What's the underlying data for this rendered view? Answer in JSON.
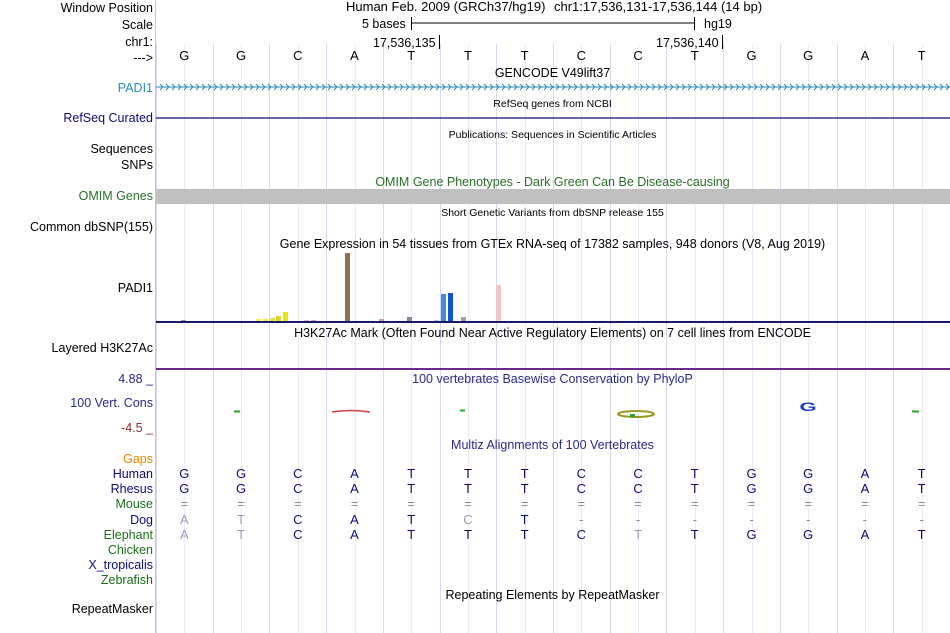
{
  "header": {
    "window_position_label": "Window Position",
    "scale_label": "Scale",
    "chrom_label": "chr1:",
    "strand_label": "--->",
    "assembly": "Human Feb. 2009 (GRCh37/hg19)",
    "position": "chr1:17,536,131-17,536,144 (14 bp)",
    "scale_text": "5 bases",
    "db": "hg19",
    "coord_a": "17,536,135",
    "coord_b": "17,536,140"
  },
  "bases": [
    "G",
    "G",
    "C",
    "A",
    "T",
    "T",
    "T",
    "C",
    "C",
    "T",
    "G",
    "G",
    "A",
    "T"
  ],
  "tracks": {
    "gencode": {
      "title": "GENCODE V49lift37",
      "label": "PADI1",
      "color": "#2a8cb4"
    },
    "refseq": {
      "title": "RefSeq genes from NCBI",
      "label": "RefSeq Curated",
      "color": "#0c0c78"
    },
    "pubs": {
      "title": "Publications: Sequences in Scientific Articles",
      "label_1": "Sequences",
      "label_2": "SNPs"
    },
    "omim": {
      "title": "OMIM Gene Phenotypes - Dark Green Can Be Disease-causing",
      "label": "OMIM Genes",
      "color": "#2a6e2a"
    },
    "dbsnp": {
      "title": "Short Genetic Variants from dbSNP release 155",
      "label": "Common dbSNP(155)"
    },
    "gtex": {
      "title": "Gene Expression in 54 tissues from GTEx RNA-seq of 17382 samples, 948 donors (V8, Aug 2019)",
      "label": "PADI1",
      "bars": [
        {
          "value": 0.3,
          "color": "#e8a0a0"
        },
        {
          "value": 0.3,
          "color": "#d8a0a0"
        },
        {
          "value": 0.2,
          "color": "#c0c0e0"
        },
        {
          "value": 0.6,
          "color": "#9090c8"
        },
        {
          "value": 0.3,
          "color": "#a0a0d0"
        },
        {
          "value": 0.5,
          "color": "#b8b8e8"
        },
        {
          "value": 0.2,
          "color": "#d0d0f0"
        },
        {
          "value": 0.3,
          "color": "#f0c0a0"
        },
        {
          "value": 0.2,
          "color": "#e8d0b0"
        },
        {
          "value": 0.2,
          "color": "#c8c8c8"
        },
        {
          "value": 0.2,
          "color": "#d0d0d0"
        },
        {
          "value": 0.2,
          "color": "#d8d8d8"
        },
        {
          "value": 0.3,
          "color": "#e8e8c0"
        },
        {
          "value": 0.2,
          "color": "#d8d8b8"
        },
        {
          "value": 1.0,
          "color": "#f0f060"
        },
        {
          "value": 1.2,
          "color": "#e8e850"
        },
        {
          "value": 1.6,
          "color": "#e0e040"
        },
        {
          "value": 2.2,
          "color": "#d8d830"
        },
        {
          "value": 3.6,
          "color": "#e8e810"
        },
        {
          "value": 0.3,
          "color": "#a0c0a0"
        },
        {
          "value": 0.5,
          "color": "#d0a0d0"
        },
        {
          "value": 0.9,
          "color": "#e0b0e0"
        },
        {
          "value": 0.6,
          "color": "#c0a0c0"
        },
        {
          "value": 0.4,
          "color": "#b0b0d0"
        },
        {
          "value": 0.3,
          "color": "#c0c0c0"
        },
        {
          "value": 0.3,
          "color": "#f0b0b0"
        },
        {
          "value": 0.2,
          "color": "#d0c0c0"
        },
        {
          "value": 26.0,
          "color": "#8b7355"
        },
        {
          "value": 0.2,
          "color": "#c0c0c0"
        },
        {
          "value": 0.3,
          "color": "#d0d0d0"
        },
        {
          "value": 0.3,
          "color": "#c0b0a0"
        },
        {
          "value": 0.2,
          "color": "#d0d0d0"
        },
        {
          "value": 1.2,
          "color": "#c8a090"
        },
        {
          "value": 0.3,
          "color": "#d8b8a8"
        },
        {
          "value": 0.2,
          "color": "#c0c0c0"
        },
        {
          "value": 0.2,
          "color": "#d0d0d0"
        },
        {
          "value": 2.0,
          "color": "#9080a0"
        },
        {
          "value": 0.2,
          "color": "#b0b0b0"
        },
        {
          "value": 0.3,
          "color": "#c0c0c0"
        },
        {
          "value": 0.2,
          "color": "#d0d0d0"
        },
        {
          "value": 0.9,
          "color": "#c0c0f0"
        },
        {
          "value": 10.5,
          "color": "#4488dd"
        },
        {
          "value": 10.8,
          "color": "#1155cc"
        },
        {
          "value": 0.3,
          "color": "#c0c0c0"
        },
        {
          "value": 2.0,
          "color": "#a0a0a0"
        },
        {
          "value": 0.2,
          "color": "#d0d0d0"
        },
        {
          "value": 0.3,
          "color": "#e0e0e0"
        },
        {
          "value": 0.2,
          "color": "#d0d0d0"
        },
        {
          "value": 0.2,
          "color": "#c8c8c8"
        },
        {
          "value": 14.0,
          "color": "#f0c8c8"
        },
        {
          "value": 0.5,
          "color": "#e0c0c0"
        },
        {
          "value": 0.3,
          "color": "#d0d0d0"
        },
        {
          "value": 0.2,
          "color": "#c8c8c8"
        },
        {
          "value": 0.2,
          "color": "#c0c0c0"
        }
      ]
    },
    "h3k27ac": {
      "title": "H3K27Ac Mark (Often Found Near Active Regulatory Elements) on 7 cell lines from ENCODE",
      "label": "Layered H3K27Ac",
      "color": "#6a2a8c"
    },
    "phylop": {
      "title": "100 vertebrates Basewise Conservation by PhyloP",
      "label": "100 Vert. Cons",
      "max_label": "4.88 _",
      "min_label": "-4.5 _",
      "color": "#2a2a8c",
      "min_color": "#8c2a2a",
      "logo_letter": "G"
    },
    "multiz": {
      "title": "Multiz Alignments of 100 Vertebrates",
      "gaps_label": "Gaps",
      "species": [
        {
          "name": "Human",
          "color": "#0c0c78",
          "bases": [
            "G",
            "G",
            "C",
            "A",
            "T",
            "T",
            "T",
            "C",
            "C",
            "T",
            "G",
            "G",
            "A",
            "T"
          ]
        },
        {
          "name": "Rhesus",
          "color": "#0c0c78",
          "bases": [
            "G",
            "G",
            "C",
            "A",
            "T",
            "T",
            "T",
            "C",
            "C",
            "T",
            "G",
            "G",
            "A",
            "T"
          ]
        },
        {
          "name": "Mouse",
          "color": "#1a6e1a",
          "bases": [
            "=",
            "=",
            "=",
            "=",
            "=",
            "=",
            "=",
            "=",
            "=",
            "=",
            "=",
            "=",
            "=",
            "="
          ]
        },
        {
          "name": "Dog",
          "color": "#0c0c78",
          "bases": [
            "A",
            "T",
            "C",
            "A",
            "T",
            "C",
            "T",
            "-",
            "-",
            "-",
            "-",
            "-",
            "-",
            "-"
          ]
        },
        {
          "name": "Elephant",
          "color": "#1a6e1a",
          "bases": [
            "A",
            "T",
            "C",
            "A",
            "T",
            "T",
            "T",
            "C",
            "T",
            "T",
            "G",
            "G",
            "A",
            "T"
          ]
        },
        {
          "name": "Chicken",
          "color": "#1a6e1a",
          "bases": []
        },
        {
          "name": "X_tropicalis",
          "color": "#0c0c78",
          "bases": []
        },
        {
          "name": "Zebrafish",
          "color": "#1a6e1a",
          "bases": []
        }
      ]
    },
    "repeatmasker": {
      "title": "Repeating Elements by RepeatMasker",
      "label": "RepeatMasker"
    }
  }
}
